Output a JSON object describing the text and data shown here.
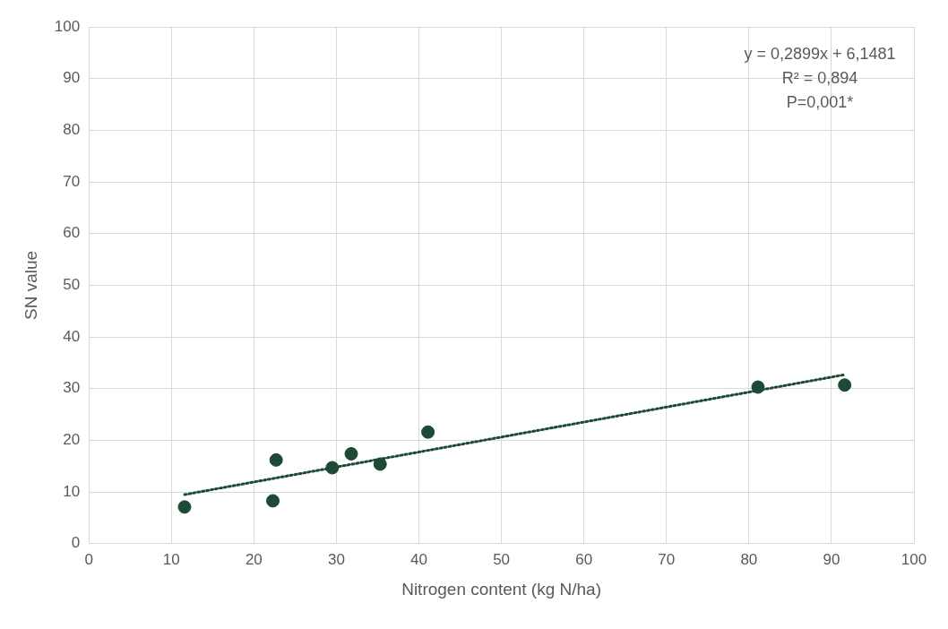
{
  "chart_data": {
    "type": "scatter",
    "xlabel": "Nitrogen content (kg N/ha)",
    "ylabel": "SN value",
    "xlim": [
      0,
      100
    ],
    "xticks": [
      0,
      10,
      20,
      30,
      40,
      50,
      60,
      70,
      80,
      90,
      100
    ],
    "ylim": [
      0,
      100
    ],
    "yticks": [
      0,
      10,
      20,
      30,
      40,
      50,
      60,
      70,
      80,
      90,
      100
    ],
    "grid": true,
    "marker": "circle",
    "annotations": [
      "y = 0,2899x + 6,1481",
      "R² = 0,894",
      "P=0,001*"
    ],
    "series": [
      {
        "type": "scatter",
        "color": "#1d4a35",
        "x": [
          11.6,
          22.3,
          22.7,
          29.5,
          31.8,
          35.3,
          41.1,
          81.1,
          91.6
        ],
        "values": [
          7.1,
          8.3,
          16.2,
          14.7,
          17.4,
          15.4,
          21.6,
          30.3,
          30.7
        ]
      },
      {
        "type": "line",
        "color": "#1d4a35",
        "x": [
          11.6,
          91.6
        ],
        "values": [
          9.5,
          32.7
        ],
        "line_style": "dotted",
        "marker": "none"
      }
    ]
  }
}
